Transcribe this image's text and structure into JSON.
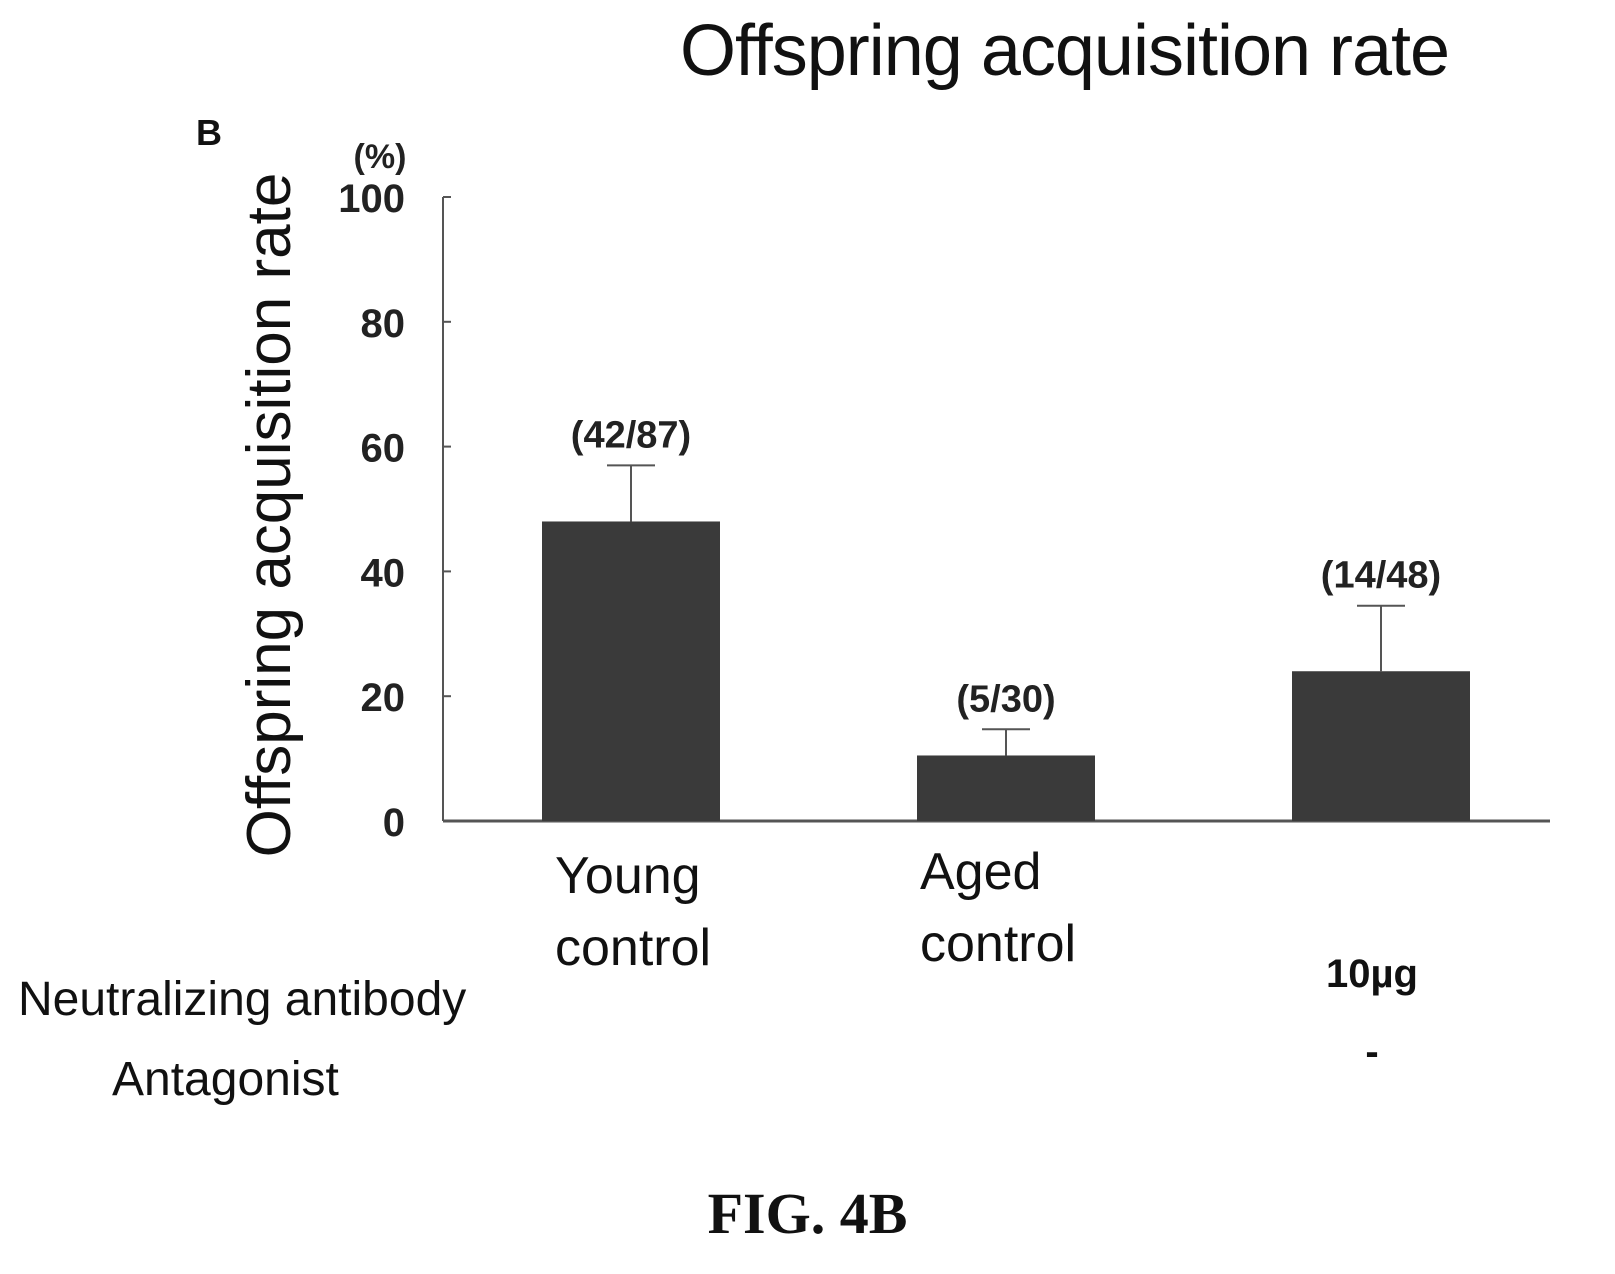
{
  "title": "Offspring acquisition rate",
  "panel_label": "B",
  "caption": "FIG. 4B",
  "chart_data": {
    "type": "bar",
    "title": "Offspring acquisition rate",
    "ylabel": "Offspring acquisition rate",
    "yunit": "(%)",
    "ylim": [
      0,
      100
    ],
    "yticks": [
      0,
      20,
      40,
      60,
      80,
      100
    ],
    "categories": [
      [
        "Young",
        "control"
      ],
      [
        "Aged",
        "control"
      ],
      [
        "",
        ""
      ]
    ],
    "values": [
      48,
      10.5,
      24
    ],
    "error_upper": [
      57,
      14.7,
      34.5
    ],
    "data_labels": [
      "(42/87)",
      "(5/30)",
      "(14/48)"
    ],
    "grid": false,
    "legend": "none",
    "bar_color": "#3a3a3a"
  },
  "treatments": {
    "rows": [
      {
        "label": "Neutralizing antibody",
        "values": [
          "",
          "",
          "10µg"
        ]
      },
      {
        "label": "Antagonist",
        "values": [
          "",
          "",
          "-"
        ]
      }
    ]
  }
}
